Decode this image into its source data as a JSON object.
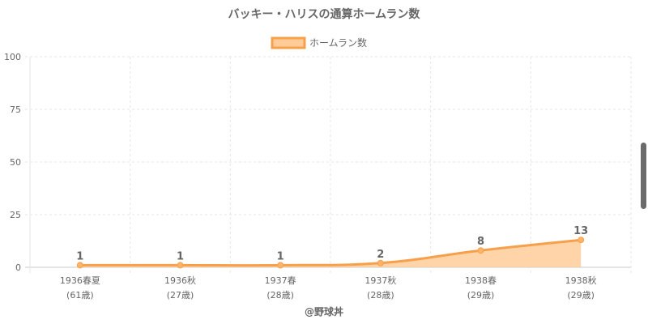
{
  "chart_data": {
    "type": "area",
    "title": "バッキー・ハリスの通算ホームラン数",
    "legend": {
      "label": "ホームラン数",
      "position": "top"
    },
    "categories": [
      {
        "line1": "1936春夏",
        "line2": "(61歳)"
      },
      {
        "line1": "1936秋",
        "line2": "(27歳)"
      },
      {
        "line1": "1937春",
        "line2": "(28歳)"
      },
      {
        "line1": "1937秋",
        "line2": "(28歳)"
      },
      {
        "line1": "1938春",
        "line2": "(29歳)"
      },
      {
        "line1": "1938秋",
        "line2": "(29歳)"
      }
    ],
    "series": [
      {
        "name": "ホームラン数",
        "values": [
          1,
          1,
          1,
          2,
          8,
          13
        ]
      }
    ],
    "data_labels": [
      "1",
      "1",
      "1",
      "2",
      "8",
      "13"
    ],
    "ylim": [
      0,
      100
    ],
    "yticks": [
      "0",
      "25",
      "50",
      "75",
      "100"
    ],
    "grid": true,
    "footer": "@野球丼",
    "colors": {
      "line": "#f7a04b",
      "fill": "#ffcc99",
      "point": "#fbb46a",
      "text": "#666666",
      "grid": "#e6e6e6"
    }
  }
}
